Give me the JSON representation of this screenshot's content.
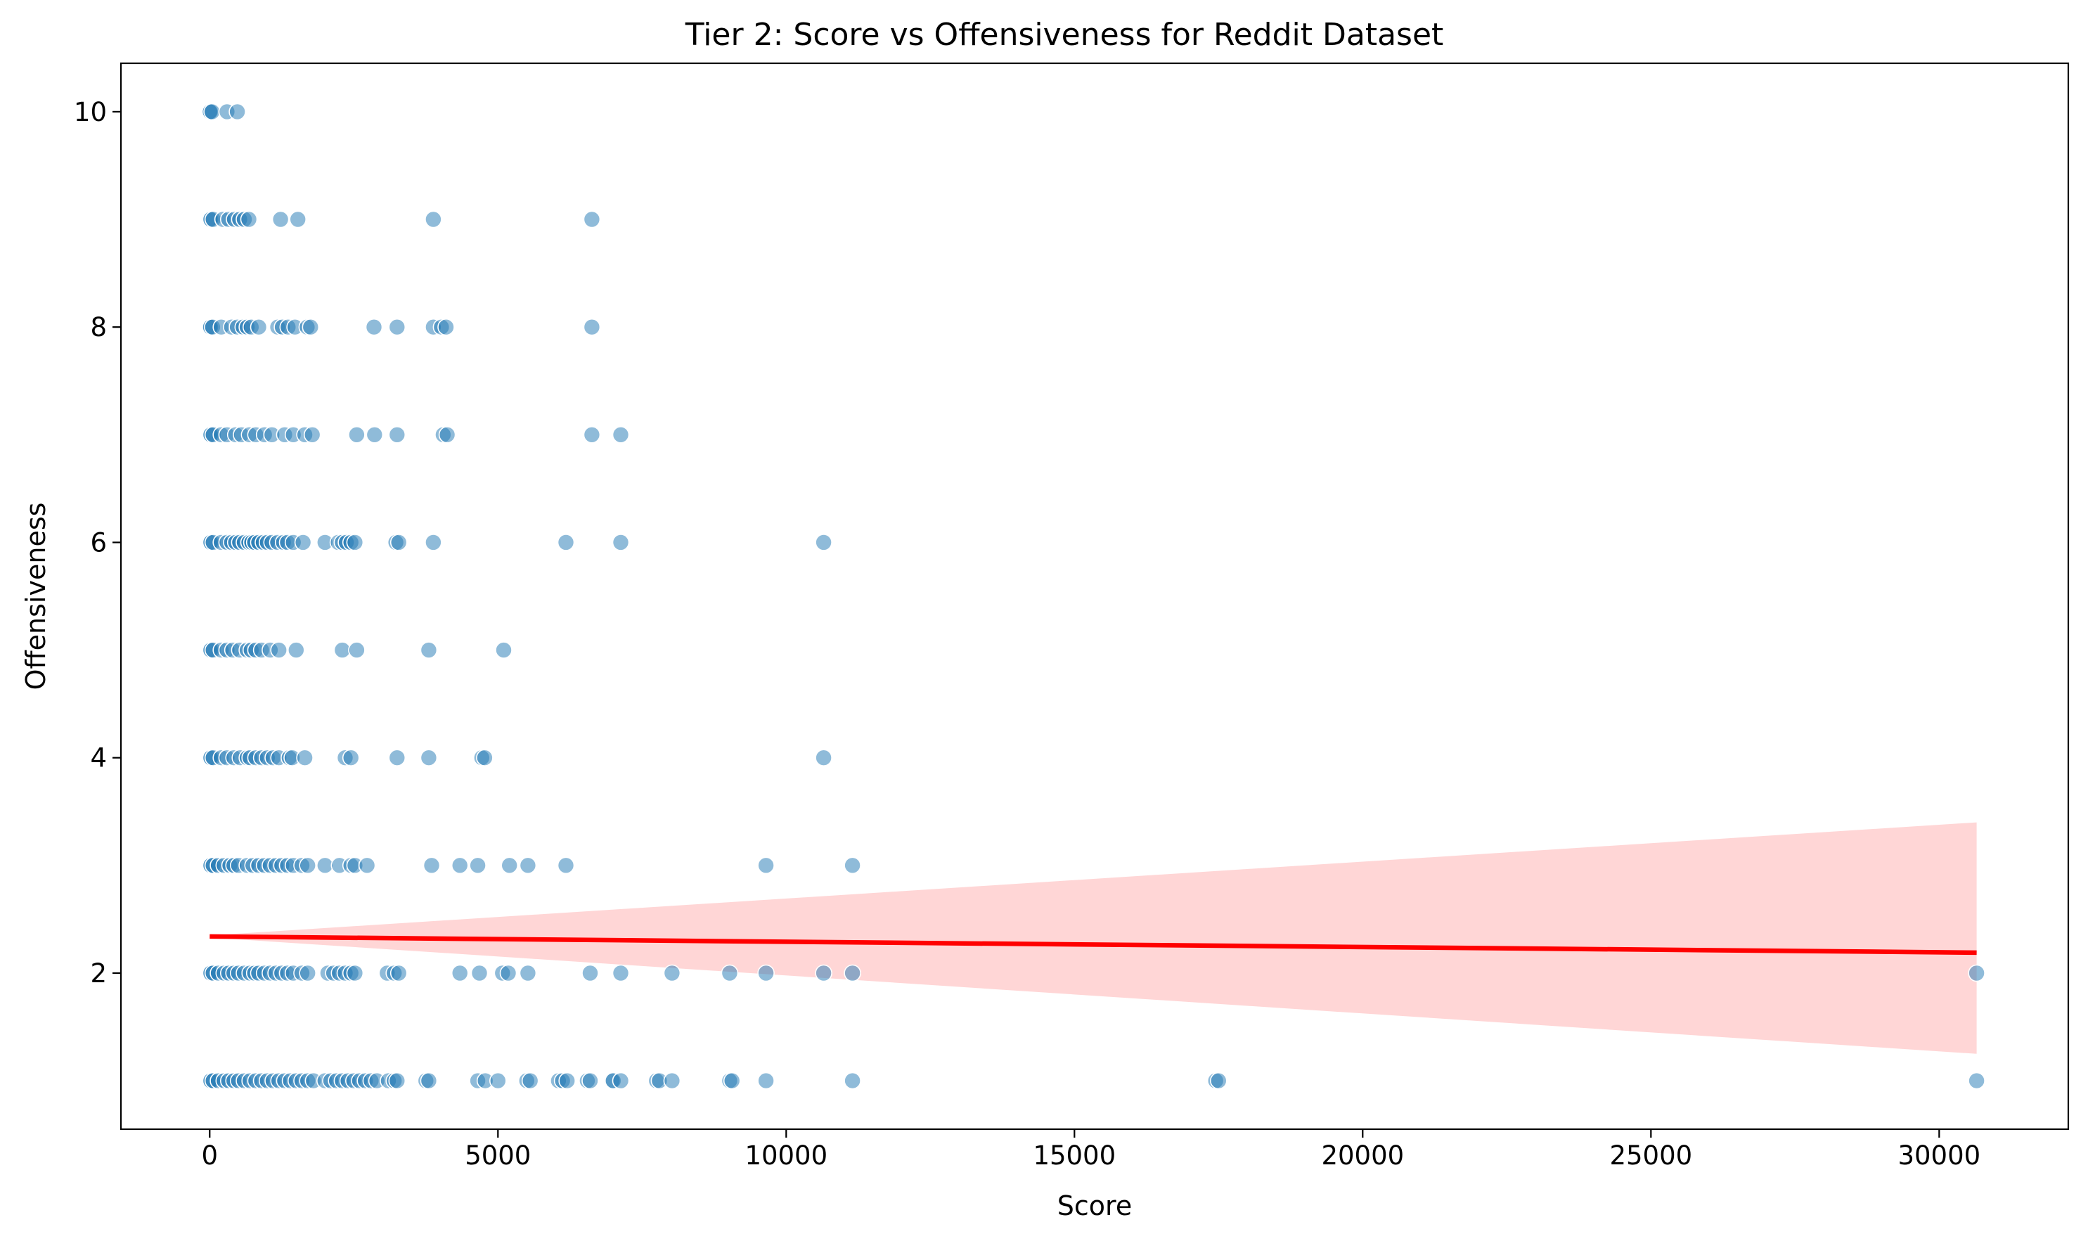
{
  "chart_data": {
    "type": "scatter",
    "title": "Tier 2: Score vs Offensiveness for Reddit Dataset",
    "xlabel": "Score",
    "ylabel": "Offensiveness",
    "xlim": [
      -1540,
      32240
    ],
    "ylim": [
      0.55,
      10.45
    ],
    "xticks": [
      0,
      5000,
      10000,
      15000,
      20000,
      25000,
      30000
    ],
    "xtick_labels": [
      "0",
      "5000",
      "10000",
      "15000",
      "20000",
      "25000",
      "30000"
    ],
    "yticks": [
      2,
      4,
      6,
      8,
      10
    ],
    "ytick_labels": [
      "2",
      "4",
      "6",
      "8",
      "10"
    ],
    "grid": false,
    "legend": "none",
    "series": [
      {
        "color": "#1f77b4",
        "points": [
          [
            0,
            10
          ],
          [
            10,
            10
          ],
          [
            40,
            10
          ],
          [
            300,
            10
          ],
          [
            480,
            10
          ],
          [
            0,
            9
          ],
          [
            20,
            9
          ],
          [
            60,
            9
          ],
          [
            230,
            9
          ],
          [
            330,
            9
          ],
          [
            430,
            9
          ],
          [
            520,
            9
          ],
          [
            600,
            9
          ],
          [
            680,
            9
          ],
          [
            1230,
            9
          ],
          [
            1530,
            9
          ],
          [
            3880,
            9
          ],
          [
            6630,
            9
          ],
          [
            0,
            8
          ],
          [
            15,
            8
          ],
          [
            50,
            8
          ],
          [
            200,
            8
          ],
          [
            380,
            8
          ],
          [
            480,
            8
          ],
          [
            580,
            8
          ],
          [
            650,
            8
          ],
          [
            720,
            8
          ],
          [
            850,
            8
          ],
          [
            1180,
            8
          ],
          [
            1260,
            8
          ],
          [
            1360,
            8
          ],
          [
            1480,
            8
          ],
          [
            1690,
            8
          ],
          [
            1750,
            8
          ],
          [
            2850,
            8
          ],
          [
            3250,
            8
          ],
          [
            3880,
            8
          ],
          [
            4020,
            8
          ],
          [
            4100,
            8
          ],
          [
            6630,
            8
          ],
          [
            0,
            7
          ],
          [
            20,
            7
          ],
          [
            60,
            7
          ],
          [
            200,
            7
          ],
          [
            300,
            7
          ],
          [
            450,
            7
          ],
          [
            550,
            7
          ],
          [
            690,
            7
          ],
          [
            800,
            7
          ],
          [
            950,
            7
          ],
          [
            1080,
            7
          ],
          [
            1300,
            7
          ],
          [
            1450,
            7
          ],
          [
            1650,
            7
          ],
          [
            1780,
            7
          ],
          [
            2550,
            7
          ],
          [
            2860,
            7
          ],
          [
            3250,
            7
          ],
          [
            4050,
            7
          ],
          [
            4120,
            7
          ],
          [
            6630,
            7
          ],
          [
            7130,
            7
          ],
          [
            0,
            6
          ],
          [
            20,
            6
          ],
          [
            60,
            6
          ],
          [
            200,
            6
          ],
          [
            300,
            6
          ],
          [
            380,
            6
          ],
          [
            450,
            6
          ],
          [
            520,
            6
          ],
          [
            600,
            6
          ],
          [
            680,
            6
          ],
          [
            730,
            6
          ],
          [
            780,
            6
          ],
          [
            850,
            6
          ],
          [
            930,
            6
          ],
          [
            1000,
            6
          ],
          [
            1080,
            6
          ],
          [
            1180,
            6
          ],
          [
            1280,
            6
          ],
          [
            1350,
            6
          ],
          [
            1450,
            6
          ],
          [
            1620,
            6
          ],
          [
            2000,
            6
          ],
          [
            2230,
            6
          ],
          [
            2300,
            6
          ],
          [
            2370,
            6
          ],
          [
            2450,
            6
          ],
          [
            2520,
            6
          ],
          [
            3230,
            6
          ],
          [
            3280,
            6
          ],
          [
            3880,
            6
          ],
          [
            6180,
            6
          ],
          [
            7130,
            6
          ],
          [
            10650,
            6
          ],
          [
            0,
            5
          ],
          [
            20,
            5
          ],
          [
            60,
            5
          ],
          [
            200,
            5
          ],
          [
            300,
            5
          ],
          [
            400,
            5
          ],
          [
            520,
            5
          ],
          [
            650,
            5
          ],
          [
            720,
            5
          ],
          [
            800,
            5
          ],
          [
            900,
            5
          ],
          [
            1050,
            5
          ],
          [
            1200,
            5
          ],
          [
            1500,
            5
          ],
          [
            2300,
            5
          ],
          [
            2550,
            5
          ],
          [
            3800,
            5
          ],
          [
            5100,
            5
          ],
          [
            0,
            4
          ],
          [
            20,
            4
          ],
          [
            60,
            4
          ],
          [
            200,
            4
          ],
          [
            300,
            4
          ],
          [
            420,
            4
          ],
          [
            530,
            4
          ],
          [
            650,
            4
          ],
          [
            700,
            4
          ],
          [
            800,
            4
          ],
          [
            900,
            4
          ],
          [
            1000,
            4
          ],
          [
            1100,
            4
          ],
          [
            1200,
            4
          ],
          [
            1380,
            4
          ],
          [
            1430,
            4
          ],
          [
            1650,
            4
          ],
          [
            2350,
            4
          ],
          [
            2450,
            4
          ],
          [
            3250,
            4
          ],
          [
            3800,
            4
          ],
          [
            4720,
            4
          ],
          [
            4770,
            4
          ],
          [
            10650,
            4
          ],
          [
            0,
            3
          ],
          [
            20,
            3
          ],
          [
            60,
            3
          ],
          [
            150,
            3
          ],
          [
            250,
            3
          ],
          [
            350,
            3
          ],
          [
            420,
            3
          ],
          [
            500,
            3
          ],
          [
            650,
            3
          ],
          [
            750,
            3
          ],
          [
            850,
            3
          ],
          [
            950,
            3
          ],
          [
            1050,
            3
          ],
          [
            1150,
            3
          ],
          [
            1250,
            3
          ],
          [
            1350,
            3
          ],
          [
            1450,
            3
          ],
          [
            1600,
            3
          ],
          [
            1700,
            3
          ],
          [
            2000,
            3
          ],
          [
            2250,
            3
          ],
          [
            2450,
            3
          ],
          [
            2520,
            3
          ],
          [
            2730,
            3
          ],
          [
            3850,
            3
          ],
          [
            4340,
            3
          ],
          [
            4650,
            3
          ],
          [
            5200,
            3
          ],
          [
            5520,
            3
          ],
          [
            6180,
            3
          ],
          [
            9650,
            3
          ],
          [
            11150,
            3
          ],
          [
            0,
            2
          ],
          [
            20,
            2
          ],
          [
            60,
            2
          ],
          [
            150,
            2
          ],
          [
            250,
            2
          ],
          [
            330,
            2
          ],
          [
            420,
            2
          ],
          [
            500,
            2
          ],
          [
            600,
            2
          ],
          [
            700,
            2
          ],
          [
            780,
            2
          ],
          [
            850,
            2
          ],
          [
            950,
            2
          ],
          [
            1050,
            2
          ],
          [
            1150,
            2
          ],
          [
            1250,
            2
          ],
          [
            1350,
            2
          ],
          [
            1450,
            2
          ],
          [
            1600,
            2
          ],
          [
            1700,
            2
          ],
          [
            2050,
            2
          ],
          [
            2150,
            2
          ],
          [
            2250,
            2
          ],
          [
            2350,
            2
          ],
          [
            2450,
            2
          ],
          [
            2520,
            2
          ],
          [
            3080,
            2
          ],
          [
            3200,
            2
          ],
          [
            3280,
            2
          ],
          [
            4340,
            2
          ],
          [
            4680,
            2
          ],
          [
            5080,
            2
          ],
          [
            5180,
            2
          ],
          [
            5520,
            2
          ],
          [
            6600,
            2
          ],
          [
            7130,
            2
          ],
          [
            8020,
            2
          ],
          [
            9020,
            2
          ],
          [
            9650,
            2
          ],
          [
            10650,
            2
          ],
          [
            11150,
            2
          ],
          [
            30650,
            2
          ],
          [
            0,
            1
          ],
          [
            20,
            1
          ],
          [
            60,
            1
          ],
          [
            150,
            1
          ],
          [
            250,
            1
          ],
          [
            330,
            1
          ],
          [
            420,
            1
          ],
          [
            500,
            1
          ],
          [
            600,
            1
          ],
          [
            700,
            1
          ],
          [
            800,
            1
          ],
          [
            900,
            1
          ],
          [
            1000,
            1
          ],
          [
            1100,
            1
          ],
          [
            1200,
            1
          ],
          [
            1300,
            1
          ],
          [
            1400,
            1
          ],
          [
            1500,
            1
          ],
          [
            1600,
            1
          ],
          [
            1700,
            1
          ],
          [
            1800,
            1
          ],
          [
            2000,
            1
          ],
          [
            2100,
            1
          ],
          [
            2200,
            1
          ],
          [
            2300,
            1
          ],
          [
            2400,
            1
          ],
          [
            2500,
            1
          ],
          [
            2600,
            1
          ],
          [
            2700,
            1
          ],
          [
            2800,
            1
          ],
          [
            2900,
            1
          ],
          [
            3100,
            1
          ],
          [
            3200,
            1
          ],
          [
            3250,
            1
          ],
          [
            3750,
            1
          ],
          [
            3800,
            1
          ],
          [
            4650,
            1
          ],
          [
            4780,
            1
          ],
          [
            5000,
            1
          ],
          [
            5500,
            1
          ],
          [
            5560,
            1
          ],
          [
            6050,
            1
          ],
          [
            6120,
            1
          ],
          [
            6200,
            1
          ],
          [
            6550,
            1
          ],
          [
            6600,
            1
          ],
          [
            6980,
            1
          ],
          [
            7000,
            1
          ],
          [
            7130,
            1
          ],
          [
            7750,
            1
          ],
          [
            7800,
            1
          ],
          [
            8020,
            1
          ],
          [
            9020,
            1
          ],
          [
            9060,
            1
          ],
          [
            9650,
            1
          ],
          [
            11150,
            1
          ],
          [
            17450,
            1
          ],
          [
            17500,
            1
          ],
          [
            30650,
            1
          ]
        ]
      }
    ],
    "regression": {
      "color": "#ff0000",
      "x": [
        0,
        30650
      ],
      "y": [
        2.34,
        2.19
      ],
      "ci_upper": [
        2.35,
        3.4
      ],
      "ci_lower": [
        2.33,
        1.25
      ]
    }
  }
}
